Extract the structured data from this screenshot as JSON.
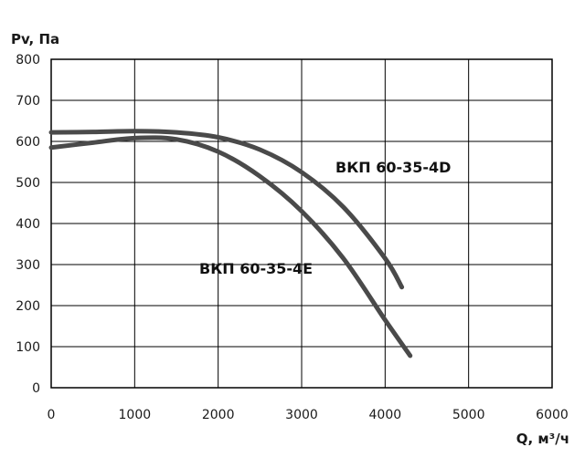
{
  "chart_data": {
    "type": "line",
    "title": "",
    "xlabel": "Q, м³/ч",
    "ylabel": "Pv, Па",
    "xlim": [
      0,
      6000
    ],
    "ylim": [
      0,
      800
    ],
    "x_ticks": [
      0,
      1000,
      2000,
      3000,
      4000,
      5000,
      6000
    ],
    "y_ticks": [
      0,
      100,
      200,
      300,
      400,
      500,
      600,
      700,
      800
    ],
    "grid": true,
    "legend": "none",
    "colors": {
      "line": "#4a4a4a",
      "grid": "#000000",
      "background": "#ffffff"
    },
    "series": [
      {
        "name": "ВКП 60-35-4D",
        "x": [
          0,
          500,
          1000,
          1500,
          2000,
          2500,
          3000,
          3500,
          4000,
          4200
        ],
        "y": [
          622,
          623,
          625,
          622,
          610,
          580,
          525,
          440,
          315,
          245
        ]
      },
      {
        "name": "ВКП 60-35-4E",
        "x": [
          0,
          500,
          1000,
          1500,
          2000,
          2500,
          3000,
          3500,
          4000,
          4300
        ],
        "y": [
          585,
          597,
          608,
          605,
          575,
          515,
          430,
          315,
          165,
          78
        ]
      }
    ]
  }
}
